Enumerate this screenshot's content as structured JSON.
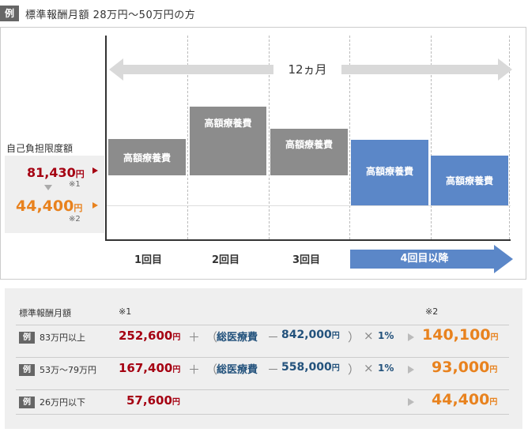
{
  "header": {
    "badge": "例",
    "title": "標準報酬月額 28万円～50万円の方"
  },
  "chart": {
    "period_label": "12ヵ月",
    "ylabel_title": "自己負担限度額",
    "limit_high": {
      "amount": "81,430",
      "unit": "円",
      "note": "※1",
      "color": "#a50012"
    },
    "limit_low": {
      "amount": "44,400",
      "unit": "円",
      "note": "※2",
      "color": "#e8821e"
    },
    "bar_label": "高額療養費",
    "x_labels": [
      "1回目",
      "2回目",
      "3回目",
      "4回目以降"
    ],
    "bar_colors": {
      "initial": "#8c8c8c",
      "later": "#5b87c8"
    }
  },
  "table": {
    "col_income": "標準報酬月額",
    "col_note1": "※1",
    "col_note2": "※2",
    "rows": [
      {
        "badge": "例",
        "income": "83万円以上",
        "base": "252,600",
        "unit": "円",
        "plus": "＋",
        "paren_open": "（",
        "total_label": "総医療費",
        "minus": "－",
        "threshold": "842,000",
        "paren_close": "）",
        "times": "×",
        "rate": "1%",
        "limit4": "140,100"
      },
      {
        "badge": "例",
        "income": "53万～79万円",
        "base": "167,400",
        "unit": "円",
        "plus": "＋",
        "paren_open": "（",
        "total_label": "総医療費",
        "minus": "－",
        "threshold": "558,000",
        "paren_close": "）",
        "times": "×",
        "rate": "1%",
        "limit4": "93,000"
      },
      {
        "badge": "例",
        "income": "26万円以下",
        "base": "57,600",
        "unit": "円",
        "limit4": "44,400"
      }
    ]
  }
}
